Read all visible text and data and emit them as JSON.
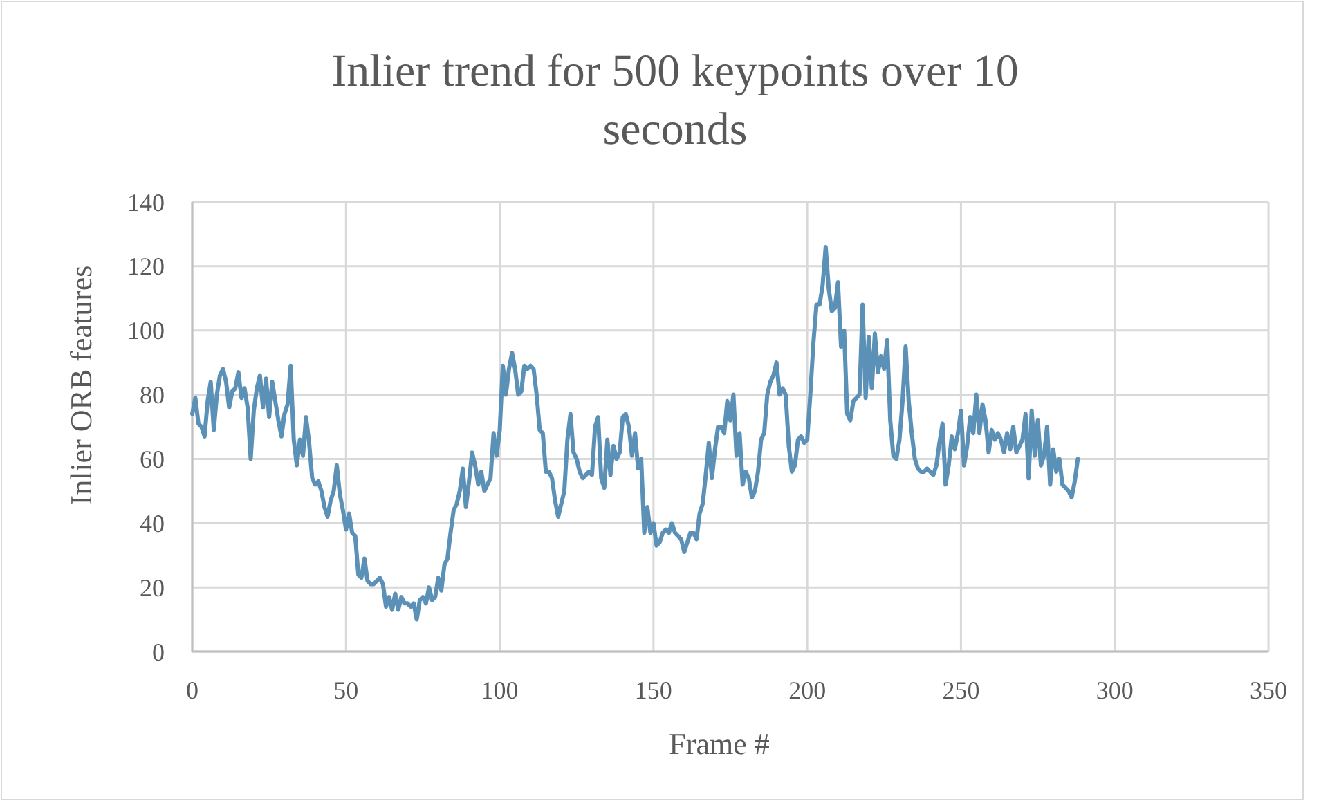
{
  "chart_data": {
    "type": "line",
    "title": "Inlier trend for 500 keypoints over 10 seconds",
    "xlabel": "Frame #",
    "ylabel": "Inlier ORB features",
    "x": [
      0,
      1,
      2,
      3,
      4,
      5,
      6,
      7,
      8,
      9,
      10,
      11,
      12,
      13,
      14,
      15,
      16,
      17,
      18,
      19,
      20,
      21,
      22,
      23,
      24,
      25,
      26,
      27,
      28,
      29,
      30,
      31,
      32,
      33,
      34,
      35,
      36,
      37,
      38,
      39,
      40,
      41,
      42,
      43,
      44,
      45,
      46,
      47,
      48,
      49,
      50,
      51,
      52,
      53,
      54,
      55,
      56,
      57,
      58,
      59,
      60,
      61,
      62,
      63,
      64,
      65,
      66,
      67,
      68,
      69,
      70,
      71,
      72,
      73,
      74,
      75,
      76,
      77,
      78,
      79,
      80,
      81,
      82,
      83,
      84,
      85,
      86,
      87,
      88,
      89,
      90,
      91,
      92,
      93,
      94,
      95,
      96,
      97,
      98,
      99,
      100,
      101,
      102,
      103,
      104,
      105,
      106,
      107,
      108,
      109,
      110,
      111,
      112,
      113,
      114,
      115,
      116,
      117,
      118,
      119,
      120,
      121,
      122,
      123,
      124,
      125,
      126,
      127,
      128,
      129,
      130,
      131,
      132,
      133,
      134,
      135,
      136,
      137,
      138,
      139,
      140,
      141,
      142,
      143,
      144,
      145,
      146,
      147,
      148,
      149,
      150,
      151,
      152,
      153,
      154,
      155,
      156,
      157,
      158,
      159,
      160,
      161,
      162,
      163,
      164,
      165,
      166,
      167,
      168,
      169,
      170,
      171,
      172,
      173,
      174,
      175,
      176,
      177,
      178,
      179,
      180,
      181,
      182,
      183,
      184,
      185,
      186,
      187,
      188,
      189,
      190,
      191,
      192,
      193,
      194,
      195,
      196,
      197,
      198,
      199,
      200,
      201,
      202,
      203,
      204,
      205,
      206,
      207,
      208,
      209,
      210,
      211,
      212,
      213,
      214,
      215,
      216,
      217,
      218,
      219,
      220,
      221,
      222,
      223,
      224,
      225,
      226,
      227,
      228,
      229,
      230,
      231,
      232,
      233,
      234,
      235,
      236,
      237,
      238,
      239,
      240,
      241,
      242,
      243,
      244,
      245,
      246,
      247,
      248,
      249,
      250,
      251,
      252,
      253,
      254,
      255,
      256,
      257,
      258,
      259,
      260,
      261,
      262,
      263,
      264,
      265,
      266,
      267,
      268,
      269,
      270,
      271,
      272,
      273,
      274,
      275,
      276,
      277,
      278,
      279,
      280,
      281,
      282,
      283,
      284,
      285,
      286,
      287,
      288
    ],
    "series": [
      {
        "color": "#5b90b7",
        "values": [
          74,
          79,
          71,
          70,
          67,
          78,
          84,
          69,
          80,
          86,
          88,
          84,
          76,
          81,
          82,
          87,
          79,
          82,
          76,
          60,
          75,
          82,
          86,
          76,
          85,
          73,
          84,
          78,
          72,
          67,
          74,
          77,
          89,
          66,
          58,
          66,
          61,
          73,
          65,
          54,
          52,
          53,
          50,
          45,
          42,
          47,
          50,
          58,
          49,
          44,
          38,
          43,
          37,
          36,
          24,
          23,
          29,
          22,
          21,
          21,
          22,
          23,
          21,
          14,
          17,
          13,
          18,
          13,
          17,
          15,
          15,
          14,
          15,
          10,
          16,
          17,
          15,
          20,
          16,
          17,
          23,
          19,
          27,
          29,
          37,
          44,
          46,
          50,
          57,
          45,
          53,
          62,
          58,
          52,
          56,
          50,
          52,
          54,
          68,
          61,
          69,
          89,
          80,
          88,
          93,
          88,
          80,
          81,
          89,
          88,
          89,
          88,
          80,
          69,
          68,
          56,
          56,
          54,
          47,
          42,
          46,
          50,
          66,
          74,
          62,
          60,
          56,
          54,
          55,
          56,
          55,
          70,
          73,
          54,
          51,
          66,
          55,
          64,
          60,
          62,
          73,
          74,
          70,
          61,
          68,
          57,
          60,
          37,
          45,
          37,
          40,
          33,
          34,
          37,
          38,
          37,
          40,
          37,
          36,
          35,
          31,
          34,
          37,
          37,
          35,
          43,
          46,
          55,
          65,
          54,
          63,
          70,
          70,
          68,
          78,
          72,
          80,
          61,
          68,
          52,
          56,
          54,
          48,
          50,
          56,
          66,
          68,
          80,
          84,
          86,
          90,
          80,
          82,
          80,
          64,
          56,
          58,
          66,
          67,
          65,
          66,
          80,
          96,
          108,
          108,
          114,
          126,
          113,
          106,
          107,
          115,
          95,
          100,
          74,
          72,
          78,
          79,
          80,
          108,
          79,
          98,
          82,
          99,
          87,
          92,
          88,
          97,
          72,
          61,
          60,
          66,
          78,
          95,
          78,
          68,
          60,
          57,
          56,
          56,
          57,
          56,
          55,
          58,
          65,
          71,
          52,
          58,
          67,
          63,
          68,
          75,
          58,
          64,
          73,
          68,
          80,
          68,
          77,
          72,
          62,
          69,
          66,
          68,
          66,
          62,
          68,
          63,
          70,
          62,
          64,
          66,
          74,
          54,
          75,
          61,
          72,
          58,
          61,
          70,
          52,
          63,
          56,
          60,
          52,
          51,
          50,
          48,
          53,
          60
        ]
      }
    ],
    "xlim": [
      0,
      350
    ],
    "xticks": [
      0,
      50,
      100,
      150,
      200,
      250,
      300,
      350
    ],
    "ylim": [
      0,
      140
    ],
    "yticks": [
      0,
      20,
      40,
      60,
      80,
      100,
      120,
      140
    ],
    "grid": true,
    "line_style": "solid",
    "marker": "none"
  }
}
